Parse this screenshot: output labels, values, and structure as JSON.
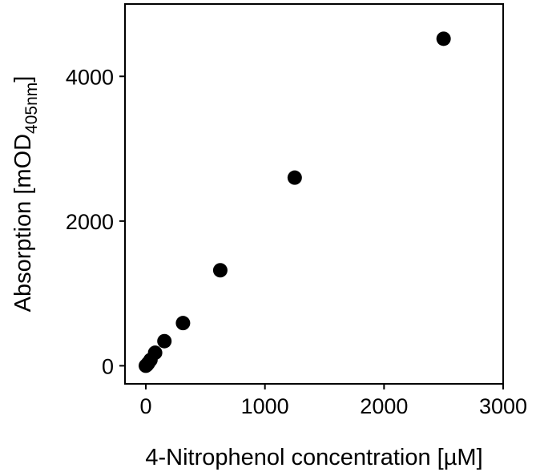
{
  "chart_data": {
    "type": "scatter",
    "title": "",
    "xlabel": "4-Nitrophenol concentration [µM]",
    "ylabel": {
      "main": "Absorption [mOD",
      "subscript": "405nm",
      "close": "]"
    },
    "x": [
      0,
      9.8,
      19.5,
      39,
      78,
      156,
      312,
      625,
      1250,
      2500
    ],
    "y": [
      0,
      15,
      35,
      80,
      180,
      340,
      590,
      1320,
      2600,
      4520
    ],
    "xlim": [
      -175,
      3000
    ],
    "ylim": [
      -250,
      5000
    ],
    "xticks": [
      0,
      1000,
      2000,
      3000
    ],
    "xtick_labels": [
      "0",
      "1000",
      "2000",
      "3000"
    ],
    "yticks": [
      0,
      2000,
      4000
    ],
    "ytick_labels": [
      "0",
      "2000",
      "4000"
    ],
    "grid": false,
    "marker_color": "#000000"
  }
}
